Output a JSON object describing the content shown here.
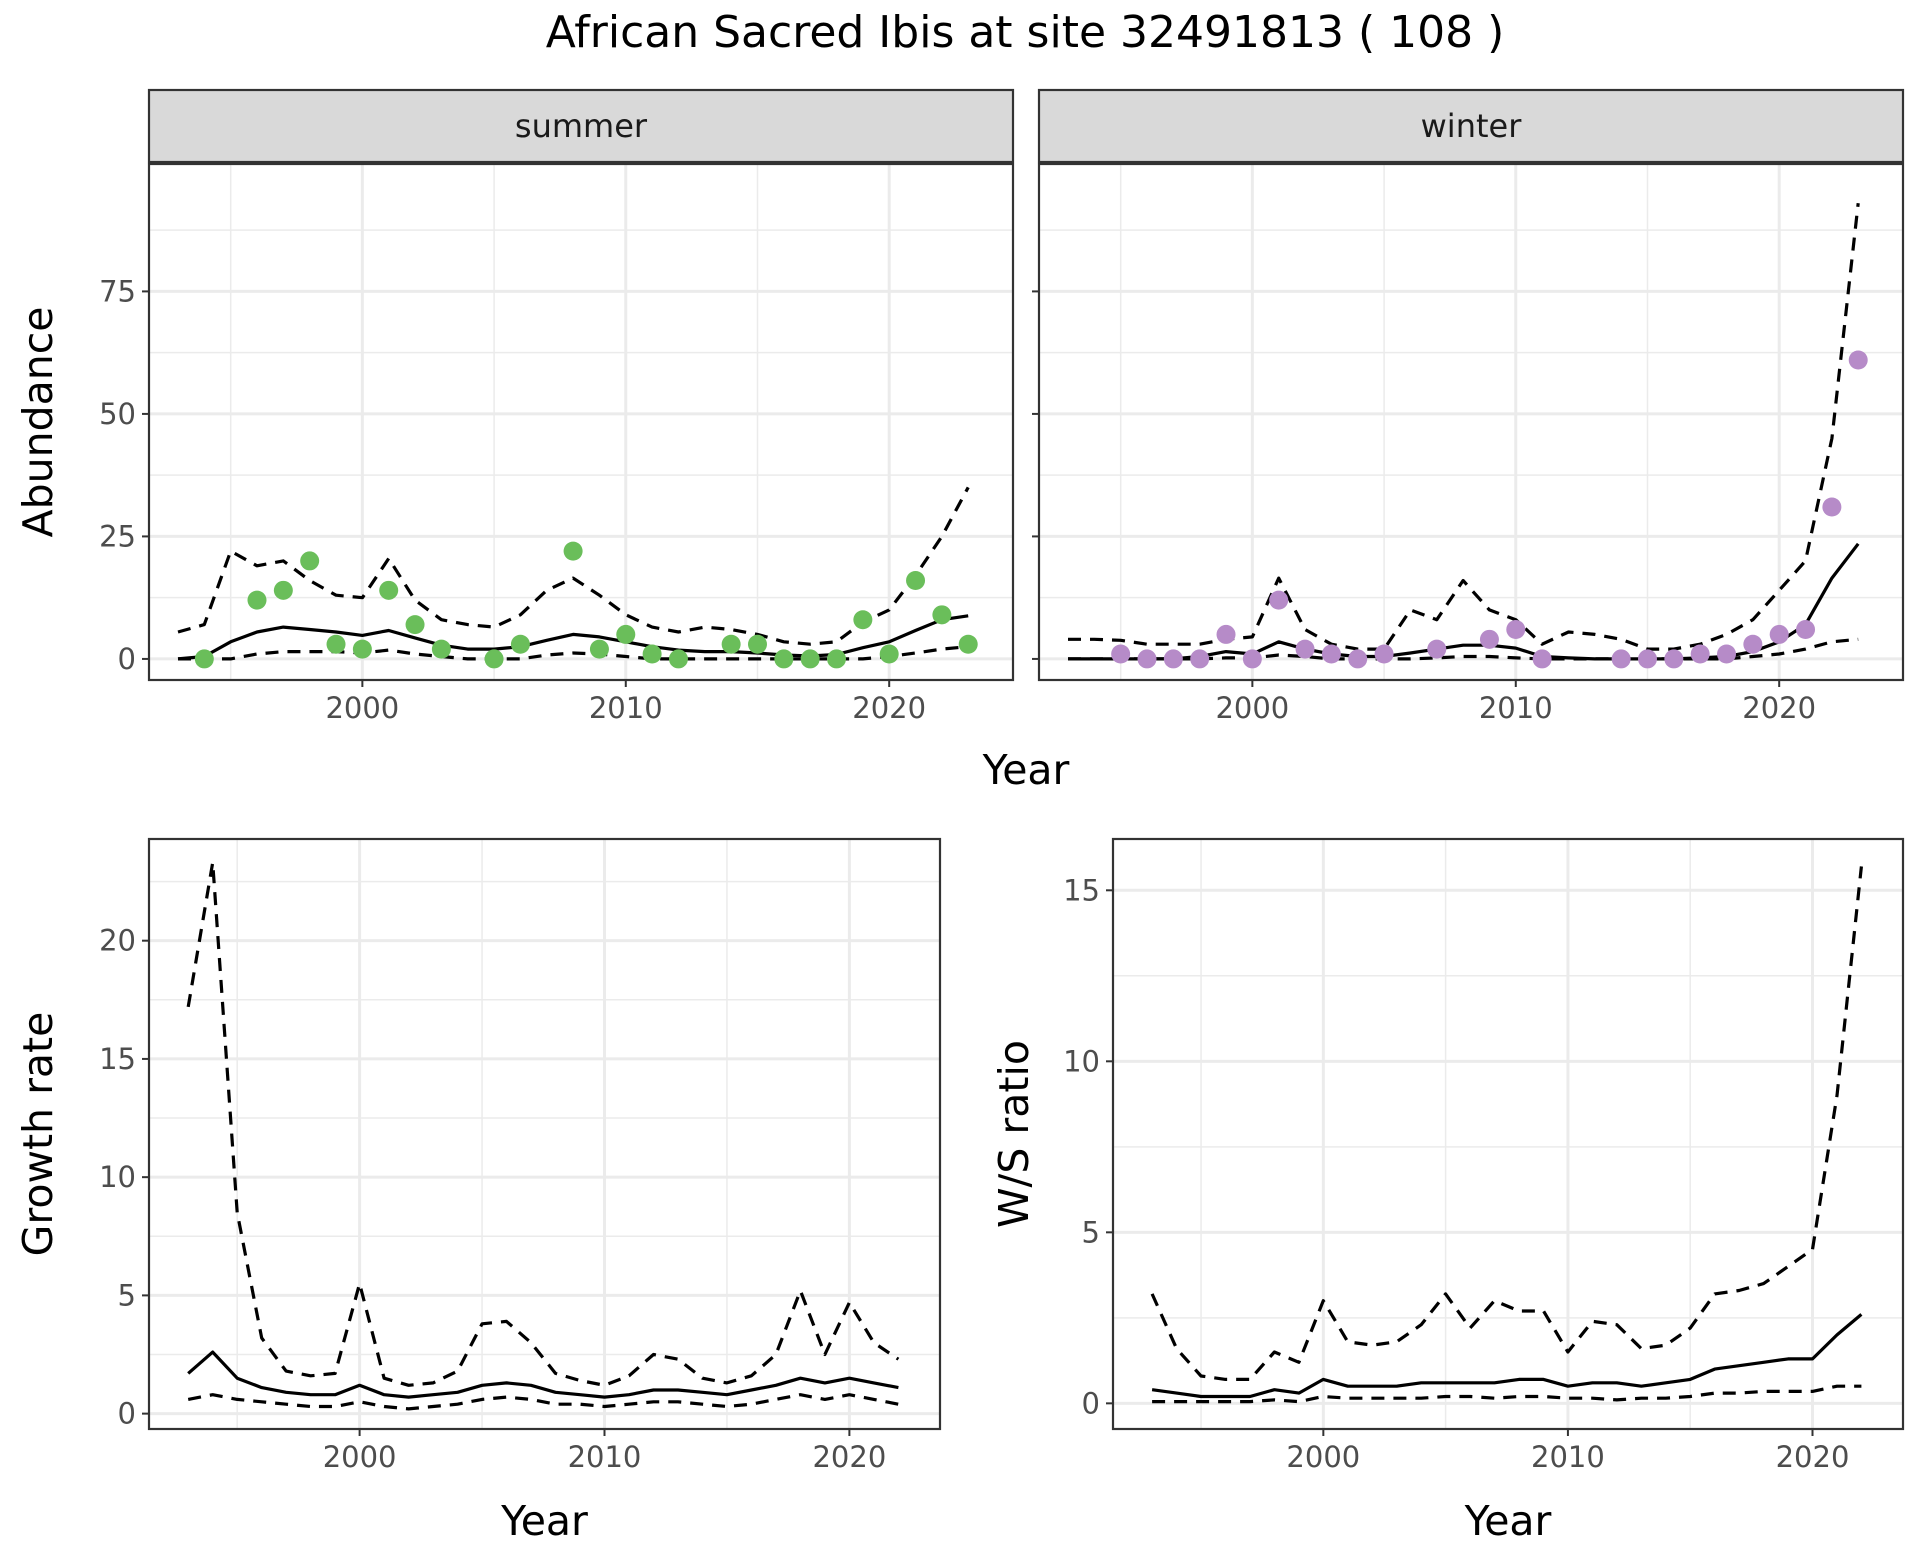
{
  "title": "African Sacred Ibis at site 32491813 ( 108 )",
  "colors": {
    "summer": "#6abe5a",
    "winter": "#b68bc8",
    "line": "#000000",
    "grid": "#ebebeb",
    "strip": "#d9d9d9"
  },
  "chart_data": [
    {
      "type": "line",
      "panel": "summer",
      "strip": "summer",
      "xlabel": "Year",
      "ylabel": "Abundance",
      "xlim": [
        1991.9,
        2024.7
      ],
      "ylim": [
        -4.3,
        101
      ],
      "xticks": [
        2000,
        2010,
        2020
      ],
      "xtick_labels": [
        "2000",
        "2010",
        "2020"
      ],
      "yticks": [
        0,
        25,
        50,
        75
      ],
      "ytick_labels": [
        "0",
        "25",
        "50",
        "75"
      ],
      "x": [
        1993,
        1994,
        1995,
        1996,
        1997,
        1998,
        1999,
        2000,
        2001,
        2002,
        2003,
        2004,
        2005,
        2006,
        2007,
        2008,
        2009,
        2010,
        2011,
        2012,
        2013,
        2014,
        2015,
        2016,
        2017,
        2018,
        2019,
        2020,
        2021,
        2022,
        2023
      ],
      "series": [
        {
          "style": "solid",
          "values": [
            0,
            0.5,
            3.5,
            5.5,
            6.5,
            6,
            5.5,
            4.8,
            5.8,
            4.3,
            2.8,
            2,
            2,
            2.5,
            3.8,
            5,
            4.5,
            3.5,
            2.5,
            1.8,
            1.5,
            1.5,
            1.2,
            0.8,
            0.6,
            0.9,
            2.3,
            3.5,
            5.8,
            8,
            8.8
          ]
        },
        {
          "style": "dashed",
          "values": [
            5.5,
            7,
            22,
            19,
            20,
            16,
            13,
            12.5,
            20.5,
            12,
            8,
            7,
            6.5,
            9,
            14,
            16.5,
            13,
            9,
            6.5,
            5.5,
            6.5,
            6,
            5,
            3.5,
            3,
            3.5,
            7.5,
            10,
            17,
            25,
            35
          ]
        },
        {
          "style": "dashed",
          "values": [
            0,
            0,
            0,
            1,
            1.5,
            1.5,
            1.5,
            1.2,
            1.8,
            1,
            0.5,
            0,
            0,
            0,
            0.8,
            1.2,
            1,
            0.5,
            0,
            0,
            0,
            0,
            0,
            0,
            0,
            0,
            0,
            0.5,
            1.2,
            2,
            2.5
          ]
        }
      ],
      "points": {
        "x": [
          1994,
          1996,
          1997,
          1998,
          1999,
          2000,
          2001,
          2002,
          2003,
          2005,
          2006,
          2008,
          2009,
          2010,
          2011,
          2012,
          2014,
          2015,
          2016,
          2017,
          2018,
          2019,
          2020,
          2021,
          2022,
          2023
        ],
        "y": [
          0,
          12,
          14,
          20,
          3,
          2,
          14,
          7,
          2,
          0,
          3,
          22,
          2,
          5,
          1,
          0,
          3,
          3,
          0,
          0,
          0,
          8,
          1,
          16,
          9,
          3
        ]
      }
    },
    {
      "type": "line",
      "panel": "winter",
      "strip": "winter",
      "xlabel": "Year",
      "ylabel": "Abundance",
      "xlim": [
        1991.9,
        2024.7
      ],
      "ylim": [
        -4.3,
        101
      ],
      "xticks": [
        2000,
        2010,
        2020
      ],
      "xtick_labels": [
        "2000",
        "2010",
        "2020"
      ],
      "yticks": [
        0,
        25,
        50,
        75
      ],
      "ytick_labels": [
        "0",
        "25",
        "50",
        "75"
      ],
      "x": [
        1993,
        1994,
        1995,
        1996,
        1997,
        1998,
        1999,
        2000,
        2001,
        2002,
        2003,
        2004,
        2005,
        2006,
        2007,
        2008,
        2009,
        2010,
        2011,
        2012,
        2013,
        2014,
        2015,
        2016,
        2017,
        2018,
        2019,
        2020,
        2021,
        2022,
        2023
      ],
      "series": [
        {
          "style": "solid",
          "values": [
            0,
            0,
            0,
            0,
            0,
            0.5,
            1.5,
            1,
            3.5,
            2,
            1,
            0.5,
            0.5,
            1.2,
            2,
            2.8,
            2.8,
            2.2,
            0.5,
            0.2,
            0,
            0,
            0,
            0,
            0.2,
            0.5,
            1.5,
            3.5,
            7,
            16.5,
            23.5
          ]
        },
        {
          "style": "dashed",
          "values": [
            4,
            4,
            3.8,
            3,
            3,
            3,
            4,
            4.5,
            16.5,
            6,
            3,
            2,
            2,
            10,
            8,
            16,
            10,
            8,
            3,
            5.5,
            5,
            4,
            2,
            2,
            3,
            5,
            8,
            14,
            20,
            45,
            93
          ]
        },
        {
          "style": "dashed",
          "values": [
            0,
            0,
            0,
            0,
            0,
            0,
            0.2,
            0.2,
            0.8,
            0.5,
            0,
            0,
            0,
            0,
            0.2,
            0.5,
            0.5,
            0.2,
            0,
            0,
            0,
            0,
            0,
            0,
            0,
            0,
            0.5,
            1,
            2,
            3.5,
            4
          ]
        }
      ],
      "points": {
        "x": [
          1995,
          1996,
          1997,
          1998,
          1999,
          2000,
          2001,
          2002,
          2003,
          2004,
          2005,
          2007,
          2009,
          2010,
          2011,
          2014,
          2015,
          2016,
          2017,
          2018,
          2019,
          2020,
          2021,
          2022,
          2023
        ],
        "y": [
          1,
          0,
          0,
          0,
          5,
          0,
          12,
          2,
          1,
          0,
          1,
          2,
          4,
          6,
          0,
          0,
          0,
          0,
          1,
          1,
          3,
          5,
          6,
          31,
          61
        ]
      }
    },
    {
      "type": "line",
      "panel": "growth",
      "xlabel": "Year",
      "ylabel": "Growth rate",
      "xlim": [
        1991.4,
        2023.7
      ],
      "ylim": [
        -0.65,
        24.3
      ],
      "xticks": [
        2000,
        2010,
        2020
      ],
      "xtick_labels": [
        "2000",
        "2010",
        "2020"
      ],
      "yticks": [
        0,
        5,
        10,
        15,
        20
      ],
      "ytick_labels": [
        "0",
        "5",
        "10",
        "15",
        "20"
      ],
      "x": [
        1993,
        1994,
        1995,
        1996,
        1997,
        1998,
        1999,
        2000,
        2001,
        2002,
        2003,
        2004,
        2005,
        2006,
        2007,
        2008,
        2009,
        2010,
        2011,
        2012,
        2013,
        2014,
        2015,
        2016,
        2017,
        2018,
        2019,
        2020,
        2021,
        2022
      ],
      "series": [
        {
          "style": "solid",
          "values": [
            1.7,
            2.6,
            1.5,
            1.1,
            0.9,
            0.8,
            0.8,
            1.2,
            0.8,
            0.7,
            0.8,
            0.9,
            1.2,
            1.3,
            1.2,
            0.9,
            0.8,
            0.7,
            0.8,
            1,
            1,
            0.9,
            0.8,
            1,
            1.2,
            1.5,
            1.3,
            1.5,
            1.3,
            1.1
          ]
        },
        {
          "style": "dashed",
          "values": [
            17.2,
            23.3,
            8.5,
            3.2,
            1.8,
            1.6,
            1.7,
            5.5,
            1.5,
            1.2,
            1.3,
            1.8,
            3.8,
            3.9,
            3,
            1.7,
            1.4,
            1.2,
            1.6,
            2.5,
            2.3,
            1.5,
            1.3,
            1.6,
            2.5,
            5.2,
            2.5,
            4.7,
            3,
            2.3
          ]
        },
        {
          "style": "dashed",
          "values": [
            0.6,
            0.8,
            0.6,
            0.5,
            0.4,
            0.3,
            0.3,
            0.5,
            0.3,
            0.2,
            0.3,
            0.4,
            0.6,
            0.7,
            0.6,
            0.4,
            0.4,
            0.3,
            0.4,
            0.5,
            0.5,
            0.4,
            0.3,
            0.4,
            0.6,
            0.8,
            0.6,
            0.8,
            0.6,
            0.4
          ]
        }
      ]
    },
    {
      "type": "line",
      "panel": "ratio",
      "xlabel": "Year",
      "ylabel": "W/S ratio",
      "xlim": [
        1991.4,
        2023.7
      ],
      "ylim": [
        -0.75,
        16.5
      ],
      "xticks": [
        2000,
        2010,
        2020
      ],
      "xtick_labels": [
        "2000",
        "2010",
        "2020"
      ],
      "yticks": [
        0,
        5,
        10,
        15
      ],
      "ytick_labels": [
        "0",
        "5",
        "10",
        "15"
      ],
      "x": [
        1993,
        1994,
        1995,
        1996,
        1997,
        1998,
        1999,
        2000,
        2001,
        2002,
        2003,
        2004,
        2005,
        2006,
        2007,
        2008,
        2009,
        2010,
        2011,
        2012,
        2013,
        2014,
        2015,
        2016,
        2017,
        2018,
        2019,
        2020,
        2021,
        2022
      ],
      "series": [
        {
          "style": "solid",
          "values": [
            0.4,
            0.3,
            0.2,
            0.2,
            0.2,
            0.4,
            0.3,
            0.7,
            0.5,
            0.5,
            0.5,
            0.6,
            0.6,
            0.6,
            0.6,
            0.7,
            0.7,
            0.5,
            0.6,
            0.6,
            0.5,
            0.6,
            0.7,
            1,
            1.1,
            1.2,
            1.3,
            1.3,
            2,
            2.6
          ]
        },
        {
          "style": "dashed",
          "values": [
            3.2,
            1.6,
            0.8,
            0.7,
            0.7,
            1.5,
            1.2,
            3,
            1.8,
            1.7,
            1.8,
            2.3,
            3.2,
            2.2,
            3,
            2.7,
            2.7,
            1.5,
            2.4,
            2.3,
            1.6,
            1.7,
            2.2,
            3.2,
            3.3,
            3.5,
            4,
            4.5,
            9,
            15.7
          ]
        },
        {
          "style": "dashed",
          "values": [
            0.05,
            0.05,
            0.05,
            0.05,
            0.05,
            0.1,
            0.05,
            0.2,
            0.15,
            0.15,
            0.15,
            0.15,
            0.2,
            0.2,
            0.15,
            0.2,
            0.2,
            0.15,
            0.15,
            0.1,
            0.15,
            0.15,
            0.2,
            0.3,
            0.3,
            0.35,
            0.35,
            0.35,
            0.5,
            0.5
          ]
        }
      ]
    }
  ]
}
